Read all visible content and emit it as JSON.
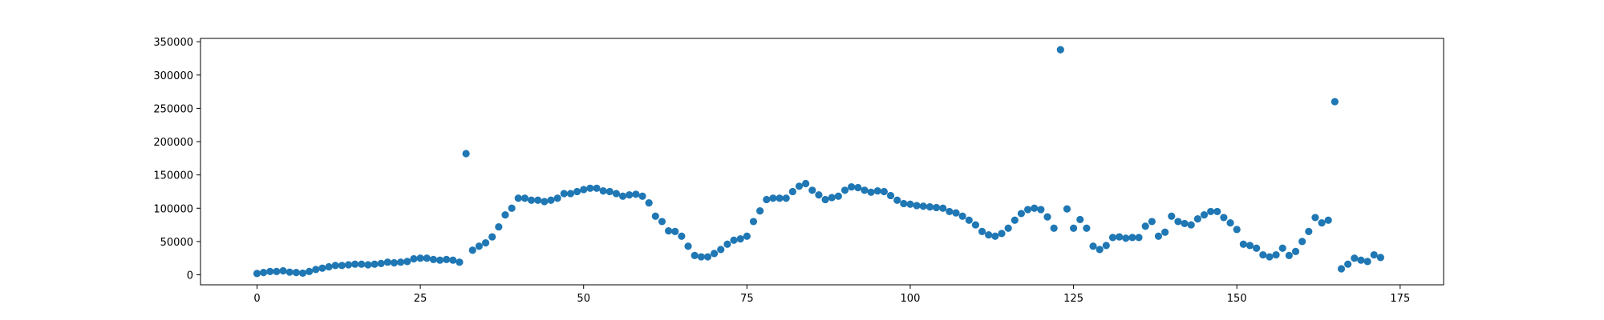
{
  "chart_data": {
    "type": "scatter",
    "title": "",
    "xlabel": "",
    "ylabel": "",
    "xlim": [
      -8.65,
      181.65
    ],
    "ylim": [
      -15000,
      355000
    ],
    "grid": false,
    "legend": "none",
    "color": "#1f77b4",
    "x_ticks": [
      0,
      25,
      50,
      75,
      100,
      125,
      150,
      175
    ],
    "y_ticks": [
      0,
      50000,
      100000,
      150000,
      200000,
      250000,
      300000,
      350000
    ],
    "x": [
      0,
      1,
      2,
      3,
      4,
      5,
      6,
      7,
      8,
      9,
      10,
      11,
      12,
      13,
      14,
      15,
      16,
      17,
      18,
      19,
      20,
      21,
      22,
      23,
      24,
      25,
      26,
      27,
      28,
      29,
      30,
      31,
      32,
      33,
      34,
      35,
      36,
      37,
      38,
      39,
      40,
      41,
      42,
      43,
      44,
      45,
      46,
      47,
      48,
      49,
      50,
      51,
      52,
      53,
      54,
      55,
      56,
      57,
      58,
      59,
      60,
      61,
      62,
      63,
      64,
      65,
      66,
      67,
      68,
      69,
      70,
      71,
      72,
      73,
      74,
      75,
      76,
      77,
      78,
      79,
      80,
      81,
      82,
      83,
      84,
      85,
      86,
      87,
      88,
      89,
      90,
      91,
      92,
      93,
      94,
      95,
      96,
      97,
      98,
      99,
      100,
      101,
      102,
      103,
      104,
      105,
      106,
      107,
      108,
      109,
      110,
      111,
      112,
      113,
      114,
      115,
      116,
      117,
      118,
      119,
      120,
      121,
      122,
      123,
      124,
      125,
      126,
      127,
      128,
      129,
      130,
      131,
      132,
      133,
      134,
      135,
      136,
      137,
      138,
      139,
      140,
      141,
      142,
      143,
      144,
      145,
      146,
      147,
      148,
      149,
      150,
      151,
      152,
      153,
      154,
      155,
      156,
      157,
      158,
      159,
      160,
      161,
      162,
      163,
      164,
      165,
      166,
      167,
      168,
      169,
      170,
      171,
      172
    ],
    "y": [
      2000,
      3500,
      5000,
      5000,
      6000,
      4000,
      3500,
      2500,
      5000,
      8000,
      10000,
      12000,
      14000,
      14000,
      15000,
      16000,
      16000,
      15000,
      16000,
      17000,
      19000,
      18000,
      19000,
      20000,
      24000,
      25000,
      25000,
      23000,
      22000,
      23000,
      22000,
      19000,
      182000,
      37000,
      43000,
      48000,
      57000,
      72000,
      90000,
      100000,
      115000,
      115000,
      112000,
      112000,
      110000,
      112000,
      115000,
      122000,
      122000,
      125000,
      128000,
      130000,
      130000,
      126000,
      125000,
      122000,
      118000,
      120000,
      121000,
      118000,
      108000,
      88000,
      80000,
      66000,
      65000,
      58000,
      43000,
      29000,
      27000,
      27000,
      32000,
      38000,
      46000,
      52000,
      54000,
      58000,
      80000,
      96000,
      113000,
      115000,
      115000,
      115000,
      125000,
      133000,
      137000,
      127000,
      120000,
      113000,
      116000,
      118000,
      127000,
      132000,
      131000,
      127000,
      124000,
      126000,
      125000,
      119000,
      112000,
      107000,
      106000,
      104000,
      103000,
      102000,
      101000,
      100000,
      95000,
      93000,
      88000,
      82000,
      75000,
      65000,
      60000,
      58000,
      62000,
      70000,
      82000,
      92000,
      98000,
      100000,
      98000,
      87000,
      70000,
      338000,
      99000,
      70000,
      83000,
      70000,
      43000,
      38000,
      44000,
      56000,
      57000,
      55000,
      56000,
      56000,
      73000,
      80000,
      58000,
      64000,
      88000,
      80000,
      77000,
      75000,
      84000,
      90000,
      95000,
      95000,
      86000,
      78000,
      68000,
      46000,
      44000,
      40000,
      30000,
      27000,
      30000,
      40000,
      29000,
      35000,
      50000,
      65000,
      86000,
      78000,
      82000,
      260000,
      9000,
      16000,
      25000,
      22000,
      20000,
      30000,
      26000
    ]
  }
}
